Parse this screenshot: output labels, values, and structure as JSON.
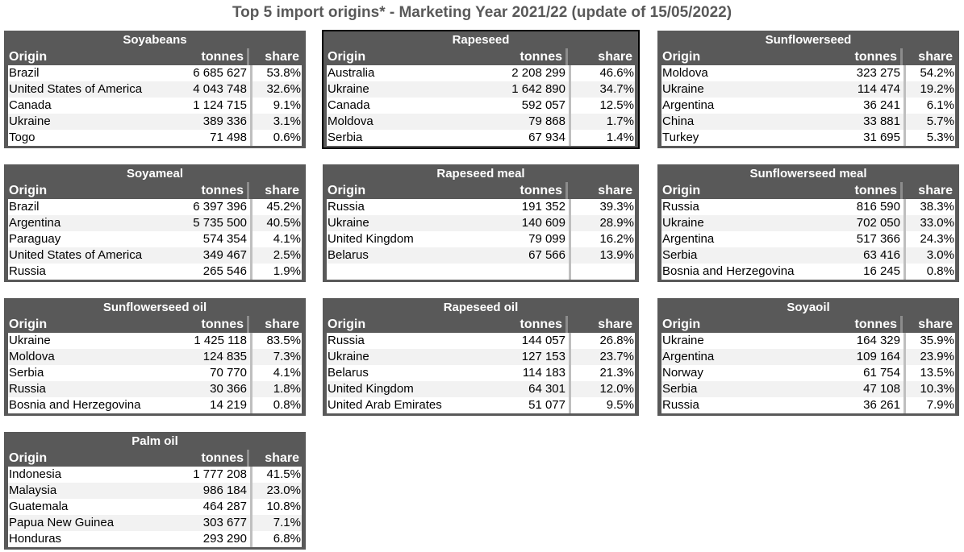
{
  "title": "Top 5 import origins* - Marketing Year 2021/22 (update of 15/05/2022)",
  "headers": {
    "origin": "Origin",
    "tonnes": "tonnes",
    "share": "share"
  },
  "tables": [
    {
      "name": "Soyabeans",
      "rows": [
        [
          "Brazil",
          "6 685 627",
          "53.8%"
        ],
        [
          "United States of America",
          "4 043 748",
          "32.6%"
        ],
        [
          "Canada",
          "1 124 715",
          "9.1%"
        ],
        [
          "Ukraine",
          "389 336",
          "3.1%"
        ],
        [
          "Togo",
          "71 498",
          "0.6%"
        ]
      ]
    },
    {
      "name": "Rapeseed",
      "selected": true,
      "rows": [
        [
          "Australia",
          "2 208 299",
          "46.6%"
        ],
        [
          "Ukraine",
          "1 642 890",
          "34.7%"
        ],
        [
          "Canada",
          "592 057",
          "12.5%"
        ],
        [
          "Moldova",
          "79 868",
          "1.7%"
        ],
        [
          "Serbia",
          "67 934",
          "1.4%"
        ]
      ]
    },
    {
      "name": "Sunflowerseed",
      "rows": [
        [
          "Moldova",
          "323 275",
          "54.2%"
        ],
        [
          "Ukraine",
          "114 474",
          "19.2%"
        ],
        [
          "Argentina",
          "36 241",
          "6.1%"
        ],
        [
          "China",
          "33 881",
          "5.7%"
        ],
        [
          "Turkey",
          "31 695",
          "5.3%"
        ]
      ]
    },
    {
      "name": "Soyameal",
      "rows": [
        [
          "Brazil",
          "6 397 396",
          "45.2%"
        ],
        [
          "Argentina",
          "5 735 500",
          "40.5%"
        ],
        [
          "Paraguay",
          "574 354",
          "4.1%"
        ],
        [
          "United States of America",
          "349 467",
          "2.5%"
        ],
        [
          "Russia",
          "265 546",
          "1.9%"
        ]
      ]
    },
    {
      "name": "Rapeseed meal",
      "rows": [
        [
          "Russia",
          "191 352",
          "39.3%"
        ],
        [
          "Ukraine",
          "140 609",
          "28.9%"
        ],
        [
          "United Kingdom",
          "79 099",
          "16.2%"
        ],
        [
          "Belarus",
          "67 566",
          "13.9%"
        ],
        [
          "",
          "",
          ""
        ]
      ]
    },
    {
      "name": "Sunflowerseed meal",
      "rows": [
        [
          "Russia",
          "816 590",
          "38.3%"
        ],
        [
          "Ukraine",
          "702 050",
          "33.0%"
        ],
        [
          "Argentina",
          "517 366",
          "24.3%"
        ],
        [
          "Serbia",
          "63 416",
          "3.0%"
        ],
        [
          "Bosnia and Herzegovina",
          "16 245",
          "0.8%"
        ]
      ]
    },
    {
      "name": "Sunflowerseed oil",
      "rows": [
        [
          "Ukraine",
          "1 425 118",
          "83.5%"
        ],
        [
          "Moldova",
          "124 835",
          "7.3%"
        ],
        [
          "Serbia",
          "70 770",
          "4.1%"
        ],
        [
          "Russia",
          "30 366",
          "1.8%"
        ],
        [
          "Bosnia and Herzegovina",
          "14 219",
          "0.8%"
        ]
      ]
    },
    {
      "name": "Rapeseed oil",
      "rows": [
        [
          "Russia",
          "144 057",
          "26.8%"
        ],
        [
          "Ukraine",
          "127 153",
          "23.7%"
        ],
        [
          "Belarus",
          "114 183",
          "21.3%"
        ],
        [
          "United Kingdom",
          "64 301",
          "12.0%"
        ],
        [
          "United Arab Emirates",
          "51 077",
          "9.5%"
        ]
      ]
    },
    {
      "name": "Soyaoil",
      "rows": [
        [
          "Ukraine",
          "164 329",
          "35.9%"
        ],
        [
          "Argentina",
          "109 164",
          "23.9%"
        ],
        [
          "Norway",
          "61 754",
          "13.5%"
        ],
        [
          "Serbia",
          "47 108",
          "10.3%"
        ],
        [
          "Russia",
          "36 261",
          "7.9%"
        ]
      ]
    },
    {
      "name": "Palm oil",
      "rows": [
        [
          "Indonesia",
          "1 777 208",
          "41.5%"
        ],
        [
          "Malaysia",
          "986 184",
          "23.0%"
        ],
        [
          "Guatemala",
          "464 287",
          "10.8%"
        ],
        [
          "Papua New Guinea",
          "303 677",
          "7.1%"
        ],
        [
          "Honduras",
          "293 290",
          "6.8%"
        ]
      ]
    }
  ]
}
